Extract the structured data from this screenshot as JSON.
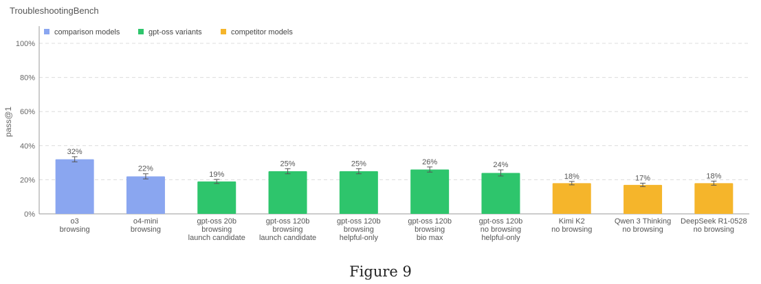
{
  "chart_data": {
    "type": "bar",
    "title": "TroubleshootingBench",
    "ylabel": "pass@1",
    "xlabel": "",
    "ylim": [
      0,
      100
    ],
    "yticks": [
      0,
      20,
      40,
      60,
      80,
      100
    ],
    "ytick_labels": [
      "0%",
      "20%",
      "40%",
      "60%",
      "80%",
      "100%"
    ],
    "grid": true,
    "legend_position": "top-left",
    "groups": [
      {
        "name": "comparison models",
        "color": "#8aa6f0"
      },
      {
        "name": "gpt-oss variants",
        "color": "#2ec56c"
      },
      {
        "name": "competitor models",
        "color": "#f5b52b"
      }
    ],
    "categories": [
      [
        "o3",
        "browsing"
      ],
      [
        "o4-mini",
        "browsing"
      ],
      [
        "gpt-oss 20b",
        "browsing",
        "launch candidate"
      ],
      [
        "gpt-oss 120b",
        "browsing",
        "launch candidate"
      ],
      [
        "gpt-oss 120b",
        "browsing",
        "helpful-only"
      ],
      [
        "gpt-oss 120b",
        "browsing",
        "bio max"
      ],
      [
        "gpt-oss 120b",
        "no browsing",
        "helpful-only"
      ],
      [
        "Kimi K2",
        "no browsing"
      ],
      [
        "Qwen 3 Thinking",
        "no browsing"
      ],
      [
        "DeepSeek R1-0528",
        "no browsing"
      ]
    ],
    "values": [
      32,
      22,
      19,
      25,
      25,
      26,
      24,
      18,
      17,
      18
    ],
    "value_labels": [
      "32%",
      "22%",
      "19%",
      "25%",
      "25%",
      "26%",
      "24%",
      "18%",
      "17%",
      "18%"
    ],
    "error": [
      1.5,
      1.5,
      1.2,
      1.5,
      1.5,
      1.5,
      1.8,
      1.0,
      1.0,
      1.2
    ],
    "group_index": [
      0,
      0,
      1,
      1,
      1,
      1,
      1,
      2,
      2,
      2
    ]
  },
  "caption": "Figure 9"
}
